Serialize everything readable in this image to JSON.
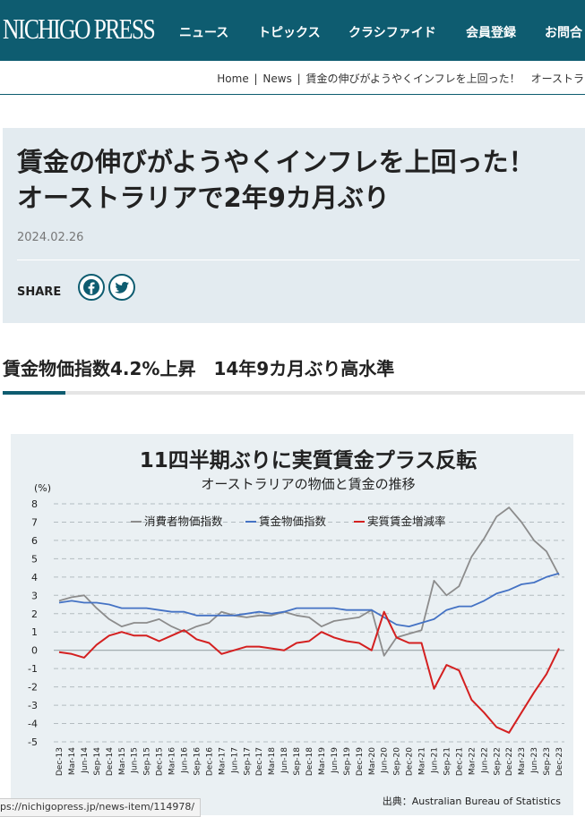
{
  "header": {
    "logo": "NICHIGO PRESS",
    "nav": [
      "ニュース",
      "トピックス",
      "クラシファイド",
      "会員登録",
      "お問合"
    ]
  },
  "breadcrumb": [
    "Home",
    "|",
    "News",
    "|",
    "賃金の伸びがようやくインフレを上回った！　オーストラ"
  ],
  "article": {
    "title": "賃金の伸びがようやくインフレを上回った！　オーストラリアで2年9カ月ぶり",
    "date": "2024.02.26",
    "share_label": "SHARE",
    "section_heading": "賃金物価指数4.2%上昇　14年9カ月ぶり高水準"
  },
  "chart_data": {
    "type": "line",
    "title": "11四半期ぶりに実質賃金プラス反転",
    "subtitle": "オーストラリアの物価と賃金の推移",
    "ylabel": "(%)",
    "ylim": [
      -5,
      8
    ],
    "yticks": [
      "8",
      "7",
      "6",
      "5",
      "4",
      "3",
      "2",
      "1",
      "0",
      "-1",
      "-2",
      "-3",
      "-4",
      "-5"
    ],
    "grid": true,
    "legend_position": "top",
    "source": "出典：Australian Bureau of Statistics",
    "x": [
      "Dec-13",
      "Mar-14",
      "Jun-14",
      "Sep-14",
      "Dec-14",
      "Mar-15",
      "Jun-15",
      "Sep-15",
      "Dec-15",
      "Mar-16",
      "Jun-16",
      "Sep-16",
      "Dec-16",
      "Mar-17",
      "Jun-17",
      "Sep-17",
      "Dec-17",
      "Mar-18",
      "Jun-18",
      "Sep-18",
      "Dec-18",
      "Mar-19",
      "Jun-19",
      "Sep-19",
      "Dec-19",
      "Mar-20",
      "Jun-20",
      "Sep-20",
      "Dec-20",
      "Mar-21",
      "Jun-21",
      "Sep-21",
      "Dec-21",
      "Mar-22",
      "Jun-22",
      "Sep-22",
      "Dec-22",
      "Mar-23",
      "Jun-23",
      "Sep-23",
      "Dec-23"
    ],
    "series": [
      {
        "name": "消費者物価指数",
        "color": "#8c8c8c",
        "values": [
          2.7,
          2.9,
          3.0,
          2.3,
          1.7,
          1.3,
          1.5,
          1.5,
          1.7,
          1.3,
          1.0,
          1.3,
          1.5,
          2.1,
          1.9,
          1.8,
          1.9,
          1.9,
          2.1,
          1.9,
          1.8,
          1.3,
          1.6,
          1.7,
          1.8,
          2.2,
          -0.3,
          0.7,
          0.9,
          1.1,
          3.8,
          3.0,
          3.5,
          5.1,
          6.1,
          7.3,
          7.8,
          7.0,
          6.0,
          5.4,
          4.1
        ]
      },
      {
        "name": "賃金物価指数",
        "color": "#4472c4",
        "values": [
          2.6,
          2.7,
          2.6,
          2.6,
          2.5,
          2.3,
          2.3,
          2.3,
          2.2,
          2.1,
          2.1,
          1.9,
          1.9,
          1.9,
          1.9,
          2.0,
          2.1,
          2.0,
          2.1,
          2.3,
          2.3,
          2.3,
          2.3,
          2.2,
          2.2,
          2.2,
          1.8,
          1.4,
          1.3,
          1.5,
          1.7,
          2.2,
          2.4,
          2.4,
          2.7,
          3.1,
          3.3,
          3.6,
          3.7,
          4.0,
          4.2
        ]
      },
      {
        "name": "実質賃金増減率",
        "color": "#d42020",
        "values": [
          -0.1,
          -0.2,
          -0.4,
          0.3,
          0.8,
          1.0,
          0.8,
          0.8,
          0.5,
          0.8,
          1.1,
          0.6,
          0.4,
          -0.2,
          0.0,
          0.2,
          0.2,
          0.1,
          0.0,
          0.4,
          0.5,
          1.0,
          0.7,
          0.5,
          0.4,
          0.0,
          2.1,
          0.7,
          0.4,
          0.4,
          -2.1,
          -0.8,
          -1.1,
          -2.7,
          -3.4,
          -4.2,
          -4.5,
          -3.4,
          -2.3,
          -1.3,
          0.1
        ]
      }
    ]
  },
  "status_bar": {
    "url": "ps://nichigopress.jp/news-item/114978/"
  }
}
